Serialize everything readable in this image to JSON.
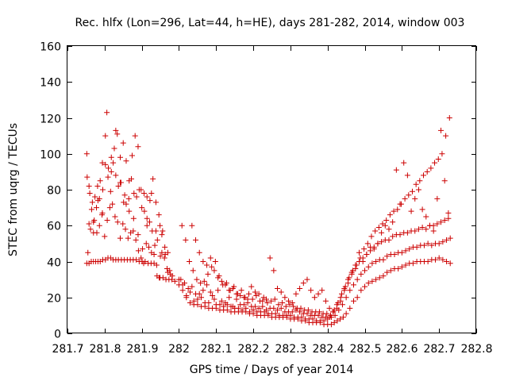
{
  "chart_data": {
    "type": "scatter",
    "title": "Rec. hlfx (Lon=296, Lat=44, h=HE), days 281-282, 2014, window 003",
    "xlabel": "GPS time / Days of year 2014",
    "ylabel": "STEC from uqrg / TECUs",
    "xlim": [
      281.7,
      282.8
    ],
    "ylim": [
      0,
      160
    ],
    "xticks": [
      "281.7",
      "281.8",
      "281.9",
      "282",
      "282.1",
      "282.2",
      "282.3",
      "282.4",
      "282.5",
      "282.6",
      "282.7",
      "282.8"
    ],
    "yticks": [
      "0",
      "20",
      "40",
      "60",
      "80",
      "100",
      "120",
      "140",
      "160"
    ],
    "grid": false,
    "marker": "plus",
    "color": "#cc0000",
    "series": [
      {
        "x": [
          281.752,
          281.758,
          281.764,
          281.77,
          281.776,
          281.782,
          281.788,
          281.795,
          281.802,
          281.809,
          281.816,
          281.823,
          281.83,
          281.837,
          281.845,
          281.853,
          281.861,
          281.869,
          281.877,
          281.885,
          281.893,
          281.901,
          281.909,
          281.917,
          281.925,
          281.933,
          281.941,
          281.949,
          281.957,
          281.965,
          281.973,
          281.981,
          281.989,
          282.0,
          282.01,
          282.02,
          282.03,
          282.04,
          282.05,
          282.06,
          282.07,
          282.08,
          282.09,
          282.1,
          282.11,
          282.12,
          282.13,
          282.14,
          282.15,
          282.16,
          282.17,
          282.18,
          282.19,
          282.2,
          282.21,
          282.22,
          282.23,
          282.24,
          282.25,
          282.26,
          282.27,
          282.28,
          282.29,
          282.3,
          282.31,
          282.32,
          282.33,
          282.34,
          282.35,
          282.36,
          282.37,
          282.38,
          282.39,
          282.4,
          282.41,
          282.418,
          282.426,
          282.434,
          282.442,
          282.45,
          282.46,
          282.47,
          282.48,
          282.49,
          282.5,
          282.51,
          282.52,
          282.53,
          282.54,
          282.55,
          282.56,
          282.57,
          282.58,
          282.59,
          282.6,
          282.61,
          282.62,
          282.63,
          282.64,
          282.65,
          282.66,
          282.67,
          282.68,
          282.69,
          282.7,
          282.71,
          282.72,
          282.73
        ],
        "y": [
          39,
          39,
          40,
          40,
          40,
          40,
          40,
          41,
          41,
          42,
          42,
          41,
          41,
          41,
          41,
          41,
          41,
          41,
          41,
          41,
          40,
          40,
          40,
          39,
          39,
          39,
          32,
          31,
          31,
          30,
          30,
          30,
          29,
          27,
          24,
          20,
          17,
          16,
          16,
          15,
          15,
          14,
          14,
          14,
          13,
          13,
          13,
          12,
          12,
          12,
          12,
          12,
          11,
          11,
          10,
          10,
          10,
          10,
          9,
          9,
          9,
          9,
          9,
          8,
          8,
          8,
          7,
          7,
          6,
          6,
          6,
          6,
          5,
          5,
          5,
          6,
          7,
          8,
          9,
          11,
          14,
          18,
          20,
          24,
          26,
          28,
          29,
          30,
          31,
          32,
          34,
          35,
          36,
          36,
          37,
          38,
          39,
          39,
          40,
          40,
          40,
          40,
          41,
          41,
          42,
          41,
          40,
          39
        ]
      },
      {
        "x": [
          281.752,
          281.758,
          281.765,
          281.772,
          281.779,
          281.786,
          281.793,
          281.8,
          281.807,
          281.814,
          281.821,
          281.828,
          281.835,
          281.842,
          281.849,
          281.856,
          281.863,
          281.87,
          281.877,
          281.884,
          281.891,
          281.898,
          281.905,
          281.912,
          281.919,
          281.926,
          281.933,
          281.94,
          281.947,
          281.954,
          281.961,
          281.968,
          281.975,
          281.982,
          282.0,
          282.01,
          282.02,
          282.03,
          282.04,
          282.05,
          282.06,
          282.07,
          282.08,
          282.09,
          282.1,
          282.11,
          282.12,
          282.13,
          282.14,
          282.15,
          282.16,
          282.17,
          282.18,
          282.19,
          282.2,
          282.21,
          282.22,
          282.23,
          282.24,
          282.25,
          282.26,
          282.27,
          282.28,
          282.29,
          282.3,
          282.31,
          282.32,
          282.33,
          282.34,
          282.35,
          282.36,
          282.37,
          282.38,
          282.39,
          282.4,
          282.41,
          282.42,
          282.43,
          282.44,
          282.45,
          282.46,
          282.47,
          282.48,
          282.49,
          282.5,
          282.51,
          282.52,
          282.53,
          282.54,
          282.55,
          282.56,
          282.57,
          282.58,
          282.59,
          282.6,
          282.61,
          282.62,
          282.63,
          282.64,
          282.65,
          282.66,
          282.67,
          282.68,
          282.69,
          282.7,
          282.71,
          282.72,
          282.73
        ],
        "y": [
          100,
          82,
          69,
          63,
          56,
          60,
          66,
          54,
          63,
          70,
          72,
          65,
          62,
          53,
          61,
          58,
          53,
          56,
          57,
          52,
          46,
          42,
          39,
          50,
          48,
          45,
          44,
          38,
          31,
          45,
          42,
          36,
          35,
          32,
          30,
          27,
          21,
          23,
          18,
          19,
          20,
          17,
          17,
          21,
          16,
          16,
          15,
          16,
          15,
          14,
          14,
          13,
          14,
          12,
          13,
          12,
          12,
          12,
          11,
          11,
          11,
          10,
          10,
          10,
          10,
          9,
          9,
          9,
          8,
          8,
          8,
          7,
          7,
          7,
          8,
          9,
          10,
          13,
          16,
          20,
          24,
          27,
          30,
          33,
          35,
          37,
          39,
          40,
          41,
          41,
          43,
          44,
          44,
          45,
          45,
          46,
          47,
          48,
          48,
          49,
          49,
          50,
          49,
          50,
          50,
          51,
          52,
          53
        ]
      },
      {
        "x": [
          281.753,
          281.76,
          281.767,
          281.774,
          281.781,
          281.788,
          281.795,
          281.802,
          281.809,
          281.816,
          281.823,
          281.83,
          281.837,
          281.844,
          281.851,
          281.858,
          281.865,
          281.872,
          281.879,
          281.886,
          281.893,
          281.9,
          281.907,
          281.914,
          281.921,
          281.928,
          281.935,
          281.942,
          281.949,
          281.956,
          281.963,
          281.97,
          281.977,
          282.005,
          282.015,
          282.025,
          282.035,
          282.045,
          282.055,
          282.065,
          282.075,
          282.085,
          282.095,
          282.105,
          282.115,
          282.125,
          282.135,
          282.145,
          282.155,
          282.165,
          282.175,
          282.185,
          282.195,
          282.205,
          282.215,
          282.225,
          282.235,
          282.245,
          282.255,
          282.265,
          282.275,
          282.285,
          282.295,
          282.305,
          282.315,
          282.325,
          282.335,
          282.345,
          282.355,
          282.365,
          282.375,
          282.385,
          282.395,
          282.405,
          282.415,
          282.425,
          282.435,
          282.445,
          282.455,
          282.465,
          282.475,
          282.485,
          282.495,
          282.505,
          282.515,
          282.525,
          282.535,
          282.545,
          282.555,
          282.565,
          282.575,
          282.585,
          282.595,
          282.605,
          282.615,
          282.625,
          282.635,
          282.645,
          282.655,
          282.665,
          282.675,
          282.685,
          282.695,
          282.705,
          282.715,
          282.725
        ],
        "y": [
          87,
          78,
          73,
          76,
          82,
          85,
          80,
          94,
          87,
          79,
          95,
          88,
          82,
          84,
          73,
          72,
          75,
          86,
          78,
          76,
          80,
          70,
          68,
          60,
          62,
          57,
          49,
          52,
          60,
          57,
          44,
          34,
          33,
          30,
          28,
          25,
          26,
          22,
          22,
          24,
          27,
          23,
          19,
          24,
          18,
          17,
          20,
          15,
          19,
          16,
          16,
          17,
          15,
          15,
          14,
          15,
          13,
          14,
          14,
          13,
          14,
          12,
          12,
          12,
          13,
          12,
          11,
          11,
          10,
          10,
          10,
          9,
          9,
          9,
          12,
          14,
          18,
          24,
          28,
          33,
          36,
          40,
          42,
          44,
          46,
          48,
          50,
          51,
          52,
          52,
          54,
          55,
          55,
          56,
          56,
          57,
          57,
          58,
          59,
          58,
          60,
          60,
          61,
          62,
          63,
          64
        ]
      },
      {
        "x": [
          281.755,
          281.762,
          281.77,
          281.778,
          281.786,
          281.794,
          281.802,
          281.81,
          281.818,
          281.826,
          281.834,
          281.842,
          281.85,
          281.858,
          281.866,
          281.874,
          281.882,
          281.89,
          281.898,
          281.906,
          281.914,
          281.922,
          281.93,
          281.938,
          281.946,
          281.954,
          281.962,
          281.97,
          282.008,
          282.018,
          282.028,
          282.038,
          282.048,
          282.058,
          282.068,
          282.078,
          282.088,
          282.098,
          282.108,
          282.118,
          282.128,
          282.138,
          282.148,
          282.158,
          282.168,
          282.178,
          282.188,
          282.198,
          282.208,
          282.218,
          282.228,
          282.238,
          282.248,
          282.258,
          282.268,
          282.278,
          282.288,
          282.298,
          282.308,
          282.318,
          282.328,
          282.338,
          282.348,
          282.358,
          282.368,
          282.378,
          282.388,
          282.398,
          282.408,
          282.418,
          282.428,
          282.438,
          282.448,
          282.458,
          282.468,
          282.478,
          282.488,
          282.498,
          282.508,
          282.518,
          282.528,
          282.538,
          282.548,
          282.558,
          282.568,
          282.578,
          282.588,
          282.598,
          282.608,
          282.618,
          282.628,
          282.638,
          282.648,
          282.658,
          282.668,
          282.678,
          282.688,
          282.698,
          282.708,
          282.718,
          282.728
        ],
        "y": [
          45,
          58,
          62,
          70,
          75,
          95,
          110,
          92,
          98,
          103,
          111,
          98,
          106,
          96,
          85,
          99,
          110,
          104,
          80,
          78,
          76,
          74,
          86,
          73,
          66,
          55,
          48,
          45,
          60,
          52,
          40,
          35,
          30,
          28,
          29,
          33,
          37,
          40,
          32,
          27,
          28,
          24,
          26,
          22,
          24,
          20,
          22,
          19,
          21,
          18,
          20,
          17,
          18,
          19,
          16,
          17,
          15,
          16,
          15,
          14,
          14,
          13,
          13,
          12,
          12,
          12,
          11,
          11,
          10,
          13,
          17,
          22,
          26,
          31,
          35,
          38,
          42,
          47,
          50,
          54,
          57,
          59,
          61,
          63,
          66,
          68,
          69,
          72,
          75,
          77,
          79,
          83,
          85,
          88,
          90,
          92,
          95,
          97,
          100,
          110,
          120
        ]
      },
      {
        "x": [
          281.758,
          281.77,
          281.782,
          281.794,
          281.806,
          281.818,
          281.83,
          281.842,
          281.854,
          281.866,
          281.878,
          281.89,
          281.902,
          281.914,
          281.926,
          281.938,
          281.95,
          282.035,
          282.045,
          282.055,
          282.065,
          282.075,
          282.085,
          282.095,
          282.105,
          282.115,
          282.125,
          282.135,
          282.145,
          282.155,
          282.165,
          282.175,
          282.185,
          282.195,
          282.205,
          282.215,
          282.225,
          282.235,
          282.245,
          282.255,
          282.265,
          282.275,
          282.285,
          282.295,
          282.305,
          282.315,
          282.325,
          282.335,
          282.345,
          282.355,
          282.365,
          282.375,
          282.385,
          282.395,
          282.405,
          282.415,
          282.425,
          282.435,
          282.445,
          282.455,
          282.465,
          282.475,
          282.485,
          282.495,
          282.505,
          282.515,
          282.525,
          282.535,
          282.545,
          282.555,
          282.565,
          282.575,
          282.585,
          282.595,
          282.605,
          282.615,
          282.625,
          282.635,
          282.645,
          282.655,
          282.665,
          282.675,
          282.685,
          282.695,
          282.705,
          282.715,
          282.725
        ],
        "y": [
          61,
          56,
          74,
          67,
          123,
          90,
          113,
          84,
          77,
          68,
          64,
          55,
          47,
          64,
          78,
          57,
          43,
          60,
          52,
          45,
          40,
          38,
          42,
          35,
          31,
          29,
          27,
          24,
          25,
          22,
          21,
          20,
          19,
          26,
          23,
          22,
          18,
          19,
          42,
          35,
          25,
          23,
          20,
          18,
          17,
          22,
          25,
          28,
          30,
          24,
          20,
          22,
          24,
          18,
          14,
          12,
          16,
          20,
          25,
          30,
          34,
          38,
          45,
          40,
          44,
          48,
          47,
          50,
          56,
          60,
          58,
          62,
          91,
          72,
          95,
          88,
          68,
          75,
          80,
          69,
          65,
          60,
          57,
          75,
          113,
          85,
          67
        ]
      }
    ]
  }
}
